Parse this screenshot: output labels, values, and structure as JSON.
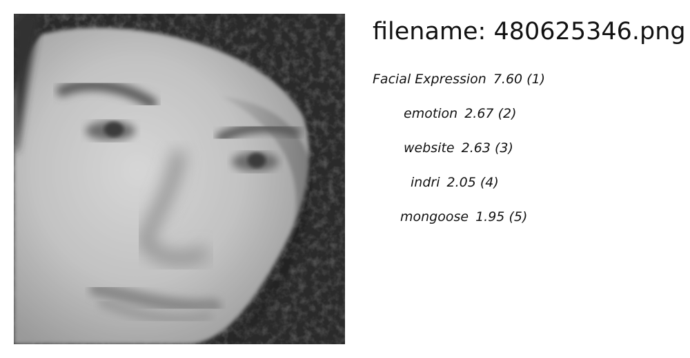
{
  "filename_line": "filename: 480625346.png",
  "labels": [
    {
      "name": "Facial Expression",
      "score": "7.60",
      "rank": "(1)"
    },
    {
      "name": "emotion",
      "score": "2.67",
      "rank": "(2)"
    },
    {
      "name": "website",
      "score": "2.63",
      "rank": "(3)"
    },
    {
      "name": "indri",
      "score": "2.05",
      "rank": "(4)"
    },
    {
      "name": "mongoose",
      "score": "1.95",
      "rank": "(5)"
    }
  ]
}
